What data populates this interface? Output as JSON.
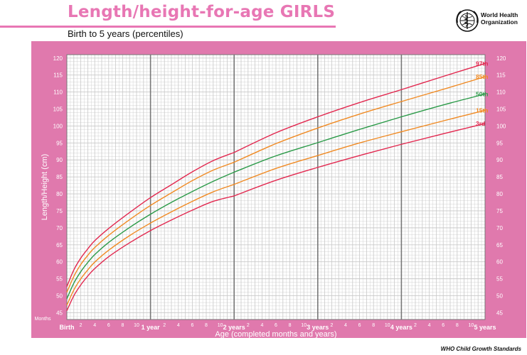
{
  "header": {
    "title": "Length/height-for-age GIRLS",
    "subtitle": "Birth to 5 years (percentiles)",
    "logo_line1": "World Health",
    "logo_line2": "Organization",
    "logo_icon": "who-emblem-icon"
  },
  "footer": {
    "text": "WHO Child Growth Standards"
  },
  "colors": {
    "frame": "#e079ad",
    "plot_bg": "#ffffff",
    "grid_minor": "#c9c9c9",
    "grid_major": "#777777",
    "p3": "#e2284f",
    "p15": "#f08a23",
    "p50": "#2b9a48",
    "p85": "#f08a23",
    "p97": "#e2284f"
  },
  "chart_data": {
    "type": "line",
    "title": "Length/height-for-age GIRLS",
    "subtitle": "Birth to 5 years (percentiles)",
    "xlabel": "Age (completed months and years)",
    "ylabel": "Length/Height (cm)",
    "x_unit_label": "Months",
    "xlim": [
      0,
      60
    ],
    "ylim": [
      43,
      121
    ],
    "y_ticks": [
      45,
      50,
      55,
      60,
      65,
      70,
      75,
      80,
      85,
      90,
      95,
      100,
      105,
      110,
      115,
      120
    ],
    "x_month_ticks": [
      2,
      4,
      6,
      8,
      10,
      2,
      4,
      6,
      8,
      10,
      2,
      4,
      6,
      8,
      10,
      2,
      4,
      6,
      8,
      10,
      2,
      4,
      6,
      8,
      10
    ],
    "x_year_labels": [
      "Birth",
      "1 year",
      "2 years",
      "3 years",
      "4 years",
      "5 years"
    ],
    "grid": true,
    "x": [
      0,
      1,
      2,
      3,
      4,
      6,
      9,
      12,
      15,
      18,
      21,
      24,
      30,
      36,
      42,
      48,
      54,
      60
    ],
    "series_break_at": 24,
    "series": [
      {
        "name": "97th",
        "color_key": "p97",
        "values": [
          52.7,
          57.6,
          61.1,
          63.8,
          66.2,
          69.8,
          74.5,
          78.9,
          82.7,
          86.5,
          89.8,
          92.2,
          98.0,
          102.7,
          106.9,
          110.7,
          114.6,
          118.4
        ]
      },
      {
        "name": "85th",
        "color_key": "p85",
        "values": [
          51.0,
          55.7,
          59.2,
          61.9,
          64.2,
          67.8,
          72.4,
          76.6,
          80.3,
          83.9,
          87.0,
          89.3,
          94.8,
          99.4,
          103.5,
          107.2,
          110.8,
          114.5
        ]
      },
      {
        "name": "50th",
        "color_key": "p50",
        "values": [
          49.1,
          53.7,
          57.1,
          59.8,
          62.1,
          65.7,
          70.1,
          74.0,
          77.5,
          80.7,
          83.7,
          86.4,
          91.2,
          95.1,
          99.0,
          102.7,
          106.2,
          109.4
        ]
      },
      {
        "name": "15th",
        "color_key": "p15",
        "values": [
          47.2,
          51.7,
          55.0,
          57.6,
          59.9,
          63.4,
          67.7,
          71.4,
          74.7,
          77.8,
          80.6,
          82.8,
          87.5,
          91.3,
          95.0,
          98.3,
          101.5,
          104.6
        ]
      },
      {
        "name": "3rd",
        "color_key": "p3",
        "values": [
          45.6,
          50.0,
          53.2,
          55.8,
          58.0,
          61.5,
          65.6,
          69.2,
          72.3,
          75.2,
          77.8,
          79.4,
          84.0,
          87.8,
          91.3,
          94.6,
          97.7,
          100.7
        ]
      }
    ]
  }
}
